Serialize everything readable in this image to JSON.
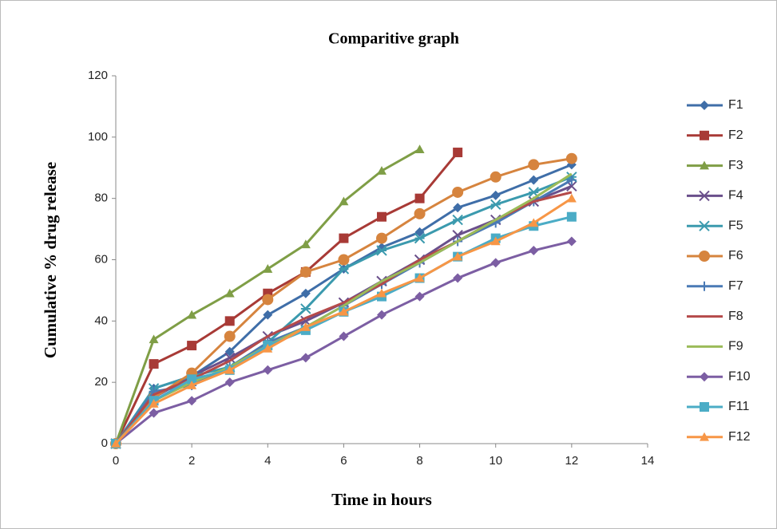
{
  "chart_data": {
    "type": "line",
    "title": "Comparitive graph",
    "x_label": "Time in hours",
    "y_label": "Cumulative % drug release",
    "x": [
      0,
      1,
      2,
      3,
      4,
      5,
      6,
      7,
      8,
      9,
      10,
      11,
      12
    ],
    "xlim": [
      0,
      14
    ],
    "xticks": [
      0,
      2,
      4,
      6,
      8,
      10,
      12,
      14
    ],
    "ylim": [
      0,
      120
    ],
    "yticks": [
      0,
      20,
      40,
      60,
      80,
      100,
      120
    ],
    "grid": false,
    "legend": "right",
    "series": [
      {
        "name": "F1",
        "color": "#3f6ea8",
        "marker": "diamond",
        "values": [
          0,
          18,
          22,
          30,
          42,
          49,
          57,
          64,
          69,
          77,
          81,
          86,
          91
        ]
      },
      {
        "name": "F2",
        "color": "#a83a36",
        "marker": "square",
        "values": [
          0,
          26,
          32,
          40,
          49,
          56,
          67,
          74,
          80,
          95,
          null,
          null,
          null
        ]
      },
      {
        "name": "F3",
        "color": "#7f9e46",
        "marker": "triangle",
        "values": [
          0,
          34,
          42,
          49,
          57,
          65,
          79,
          89,
          96,
          null,
          null,
          null,
          null
        ]
      },
      {
        "name": "F4",
        "color": "#6a4f8b",
        "marker": "x",
        "values": [
          0,
          15,
          22,
          28,
          35,
          40,
          46,
          53,
          60,
          68,
          73,
          79,
          84
        ]
      },
      {
        "name": "F5",
        "color": "#3b9aae",
        "marker": "asterisk",
        "values": [
          0,
          18,
          22,
          25,
          33,
          44,
          57,
          63,
          67,
          73,
          78,
          82,
          87
        ]
      },
      {
        "name": "F6",
        "color": "#d6843e",
        "marker": "circle",
        "values": [
          0,
          15,
          23,
          35,
          47,
          56,
          60,
          67,
          75,
          82,
          87,
          91,
          93
        ]
      },
      {
        "name": "F7",
        "color": "#4a7ab5",
        "marker": "plus",
        "values": [
          0,
          17,
          19,
          25,
          33,
          38,
          45,
          52,
          59,
          66,
          72,
          79,
          86
        ]
      },
      {
        "name": "F8",
        "color": "#b54a4a",
        "marker": "none",
        "values": [
          0,
          16,
          21,
          27,
          35,
          41,
          46,
          52,
          60,
          66,
          73,
          79,
          82
        ]
      },
      {
        "name": "F9",
        "color": "#9bbb59",
        "marker": "none",
        "values": [
          0,
          14,
          20,
          25,
          32,
          38,
          45,
          53,
          59,
          66,
          73,
          80,
          88
        ]
      },
      {
        "name": "F10",
        "color": "#7c5ea3",
        "marker": "diamond",
        "values": [
          0,
          10,
          14,
          20,
          24,
          28,
          35,
          42,
          48,
          54,
          59,
          63,
          66
        ]
      },
      {
        "name": "F11",
        "color": "#4bacc6",
        "marker": "square",
        "values": [
          0,
          14,
          21,
          24,
          32,
          37,
          43,
          48,
          54,
          61,
          67,
          71,
          74
        ]
      },
      {
        "name": "F12",
        "color": "#f79646",
        "marker": "triangle",
        "values": [
          0,
          13,
          19,
          24,
          31,
          38,
          43,
          49,
          54,
          61,
          66,
          72,
          80
        ]
      }
    ]
  }
}
